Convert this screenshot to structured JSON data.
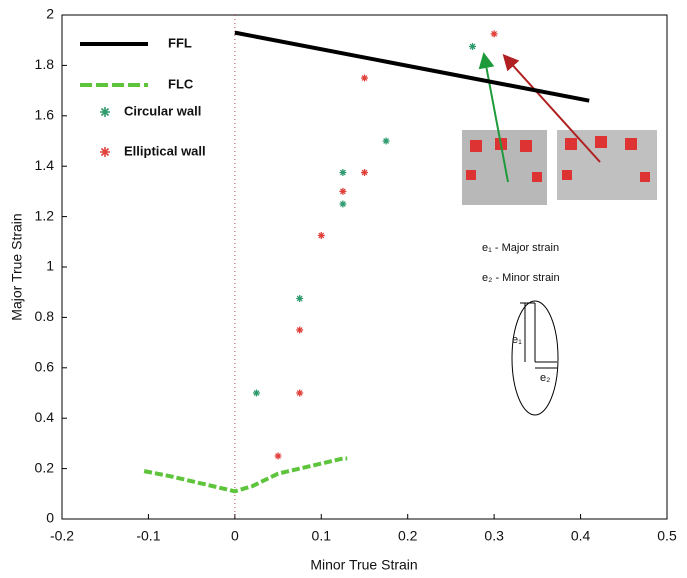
{
  "chart_data": {
    "type": "line",
    "xlabel": "Minor True Strain",
    "ylabel": "Major True Strain",
    "xlim": [
      -0.2,
      0.5
    ],
    "ylim": [
      0,
      2
    ],
    "xticks": [
      -0.2,
      -0.1,
      0,
      0.1,
      0.2,
      0.3,
      0.4,
      0.5
    ],
    "yticks": [
      0,
      0.2,
      0.4,
      0.6,
      0.8,
      1,
      1.2,
      1.4,
      1.6,
      1.8,
      2
    ],
    "series": [
      {
        "name": "FFL",
        "color": "#000000",
        "mode": "line",
        "x": [
          0,
          0.41
        ],
        "values": [
          1.93,
          1.66
        ]
      },
      {
        "name": "FLC",
        "color": "#5ec43c",
        "mode": "dashed",
        "x": [
          -0.105,
          -0.075,
          -0.05,
          -0.025,
          0,
          0.02,
          0.05,
          0.075,
          0.1,
          0.125,
          0.13
        ],
        "values": [
          0.19,
          0.17,
          0.15,
          0.13,
          0.11,
          0.13,
          0.18,
          0.2,
          0.22,
          0.24,
          0.24
        ]
      },
      {
        "name": "Circular wall",
        "color": "#2e9a6e",
        "mode": "markers",
        "x": [
          0.025,
          0.075,
          0.125,
          0.125,
          0.175,
          0.275
        ],
        "values": [
          0.5,
          0.875,
          1.375,
          1.25,
          1.5,
          1.875
        ]
      },
      {
        "name": "Elliptical wall",
        "color": "#e0403a",
        "mode": "markers",
        "x": [
          0.05,
          0.075,
          0.075,
          0.1,
          0.125,
          0.15,
          0.15,
          0.3
        ],
        "values": [
          0.25,
          0.75,
          0.5,
          1.125,
          1.3,
          1.375,
          1.75,
          1.925
        ]
      }
    ],
    "annotations": [
      "e₁ - Major strain",
      "e₂ - Minor strain",
      "e₁",
      "e₂"
    ]
  }
}
